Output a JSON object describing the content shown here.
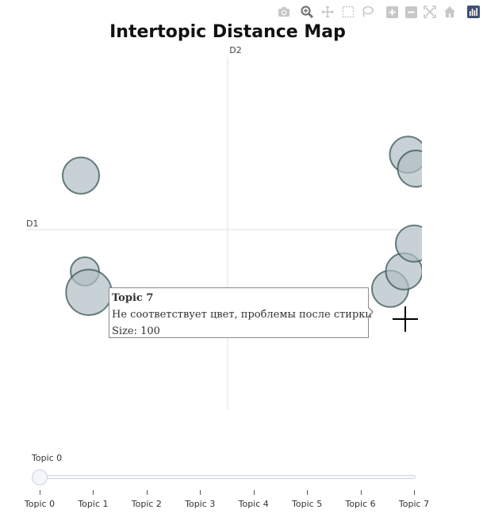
{
  "chart_data": {
    "type": "scatter",
    "title": "Intertopic Distance Map",
    "xlabel": "D1",
    "ylabel": "D2",
    "xlim": [
      -10,
      10
    ],
    "ylim": [
      -10,
      10
    ],
    "grid": false,
    "points": [
      {
        "x": -7.4,
        "y": 3.1,
        "size": 100
      },
      {
        "x": -7.2,
        "y": -2.4,
        "size": 100
      },
      {
        "x": -7.0,
        "y": -3.6,
        "size": 100
      },
      {
        "x": 8.2,
        "y": -3.4,
        "size": 100
      },
      {
        "x": 8.9,
        "y": -2.4,
        "size": 100
      },
      {
        "x": 9.1,
        "y": 4.3,
        "size": 100
      },
      {
        "x": 9.4,
        "y": -0.8,
        "size": 100
      },
      {
        "x": 9.5,
        "y": 3.5,
        "size": 100
      }
    ],
    "marker_color": "#b0bec5",
    "marker_line_color": "#2f4f4f"
  },
  "tooltip": {
    "title": "Topic 7",
    "text": "Не соответствует цвет, проблемы после стирки",
    "size_text": "Size: 100"
  },
  "slider": {
    "current_label": "Topic 0",
    "current_index": 0,
    "steps": [
      "Topic 0",
      "Topic 1",
      "Topic 2",
      "Topic 3",
      "Topic 4",
      "Topic 5",
      "Topic 6",
      "Topic 7"
    ]
  },
  "modebar": {
    "buttons": [
      "camera-icon",
      "zoom-icon",
      "pan-icon",
      "box-select-icon",
      "lasso-icon",
      "zoom-in-icon",
      "zoom-out-icon",
      "autoscale-icon",
      "reset-axes-icon",
      "plotly-logo-icon"
    ]
  }
}
